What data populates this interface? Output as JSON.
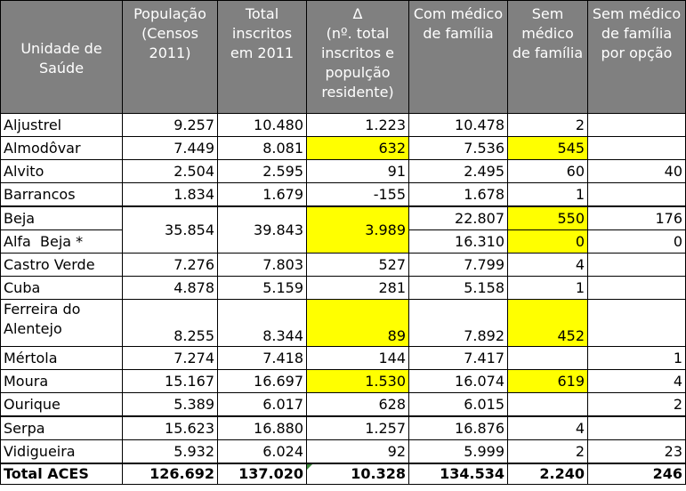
{
  "headers": {
    "unidade": "Unidade de Saúde",
    "populacao": "População (Censos 2011)",
    "inscritos": "Total inscritos em 2011",
    "delta_symbol": "Δ",
    "delta_desc": "(nº. total inscritos e populção residente)",
    "com_medico": "Com médico de família",
    "sem_medico": "Sem médico de família",
    "sem_medico_opcao": "Sem médico de família por opção"
  },
  "rows": {
    "aljustrel": {
      "name": "Aljustrel",
      "pop": "9.257",
      "ins": "10.480",
      "delta": "1.223",
      "com": "10.478",
      "sem": "2",
      "opc": ""
    },
    "almodovar": {
      "name": "Almodôvar",
      "pop": "7.449",
      "ins": "8.081",
      "delta": "632",
      "com": "7.536",
      "sem": "545",
      "opc": ""
    },
    "alvito": {
      "name": "Alvito",
      "pop": "2.504",
      "ins": "2.595",
      "delta": "91",
      "com": "2.495",
      "sem": "60",
      "opc": "40"
    },
    "barrancos": {
      "name": "Barrancos",
      "pop": "1.834",
      "ins": "1.679",
      "delta": "-155",
      "com": "1.678",
      "sem": "1",
      "opc": ""
    },
    "beja": {
      "name": "Beja",
      "pop": "35.854",
      "ins": "39.843",
      "delta": "3.989",
      "com": "22.807",
      "sem": "550",
      "opc": "176"
    },
    "alfa_beja": {
      "name": "Alfa  Beja *",
      "com": "16.310",
      "sem": "0",
      "opc": "0"
    },
    "castro_verde": {
      "name": "Castro Verde",
      "pop": "7.276",
      "ins": "7.803",
      "delta": "527",
      "com": "7.799",
      "sem": "4",
      "opc": ""
    },
    "cuba": {
      "name": "Cuba",
      "pop": "4.878",
      "ins": "5.159",
      "delta": "281",
      "com": "5.158",
      "sem": "1",
      "opc": ""
    },
    "ferreira": {
      "name": "Ferreira do Alentejo",
      "pop": "8.255",
      "ins": "8.344",
      "delta": "89",
      "com": "7.892",
      "sem": "452",
      "opc": ""
    },
    "mertola": {
      "name": "Mértola",
      "pop": "7.274",
      "ins": "7.418",
      "delta": "144",
      "com": "7.417",
      "sem": "",
      "opc": "1"
    },
    "moura": {
      "name": "Moura",
      "pop": "15.167",
      "ins": "16.697",
      "delta": "1.530",
      "com": "16.074",
      "sem": "619",
      "opc": "4"
    },
    "ourique": {
      "name": "Ourique",
      "pop": "5.389",
      "ins": "6.017",
      "delta": "628",
      "com": "6.015",
      "sem": "",
      "opc": "2"
    },
    "serpa": {
      "name": "Serpa",
      "pop": "15.623",
      "ins": "16.880",
      "delta": "1.257",
      "com": "16.876",
      "sem": "4",
      "opc": ""
    },
    "vidigueira": {
      "name": "Vidigueira",
      "pop": "5.932",
      "ins": "6.024",
      "delta": "92",
      "com": "5.999",
      "sem": "2",
      "opc": "23"
    },
    "total": {
      "name": "Total ACES",
      "pop": "126.692",
      "ins": "137.020",
      "delta": "10.328",
      "com": "134.534",
      "sem": "2.240",
      "opc": "246"
    }
  },
  "colors": {
    "header_bg": "#808080",
    "header_text": "#ffffff",
    "highlight": "#ffff00"
  }
}
